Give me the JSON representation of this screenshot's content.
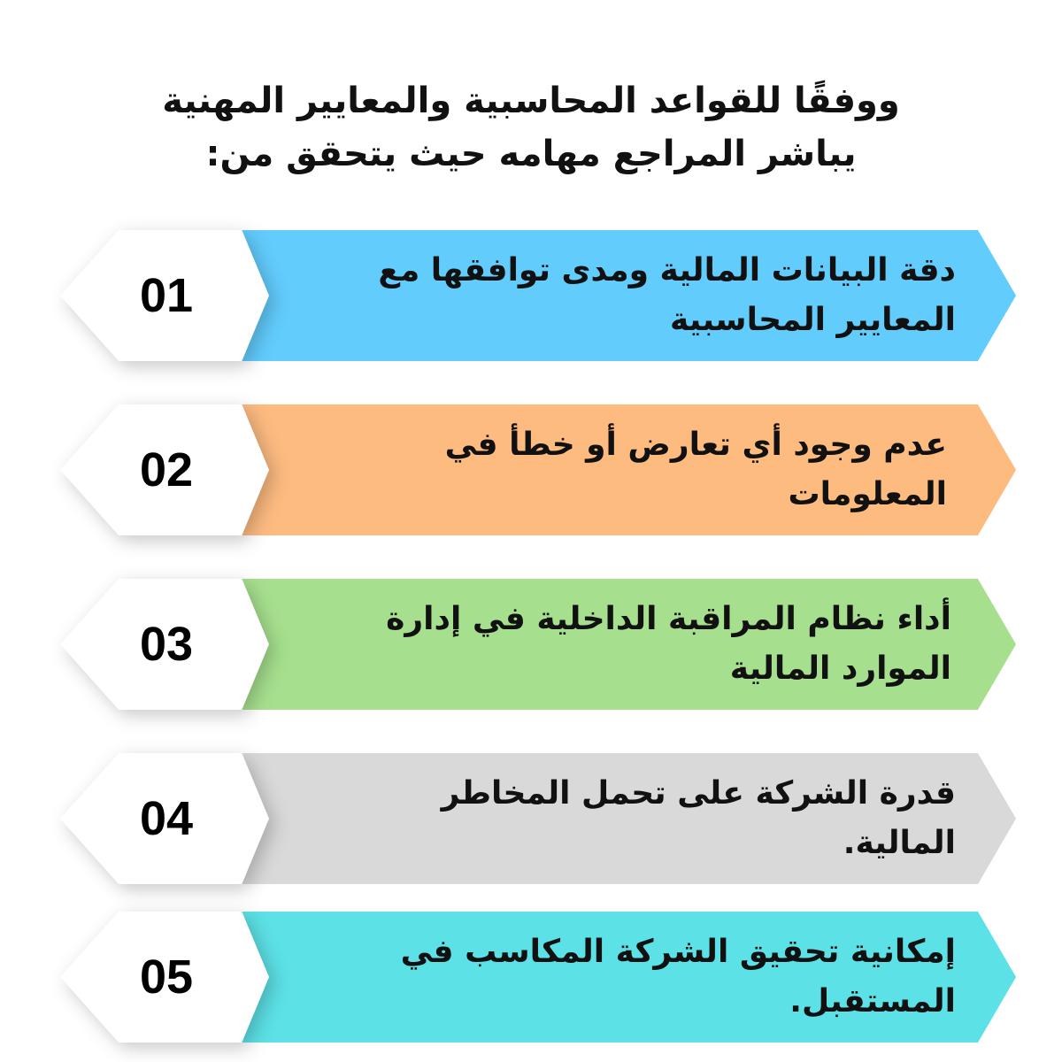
{
  "title": {
    "line1": "ووفقًا للقواعد المحاسبية والمعايير المهنية",
    "line2": "يباشر المراجع مهامه حيث يتحقق من:"
  },
  "items": [
    {
      "number": "01",
      "text": "دقة البيانات المالية ومدى توافقها مع المعايير المحاسبية",
      "color": "#62CCFD"
    },
    {
      "number": "02",
      "text": "عدم وجود أي تعارض أو خطأ في المعلومات",
      "color": "#FDBB80"
    },
    {
      "number": "03",
      "text": "أداء نظام المراقبة الداخلية في إدارة الموارد المالية",
      "color": "#A6E08E"
    },
    {
      "number": "04",
      "text": "قدرة الشركة على تحمل المخاطر المالية.",
      "color": "#D9D9D9"
    },
    {
      "number": "05",
      "text": "إمكانية تحقيق الشركة المكاسب في المستقبل.",
      "color": "#5CE1E6"
    }
  ]
}
